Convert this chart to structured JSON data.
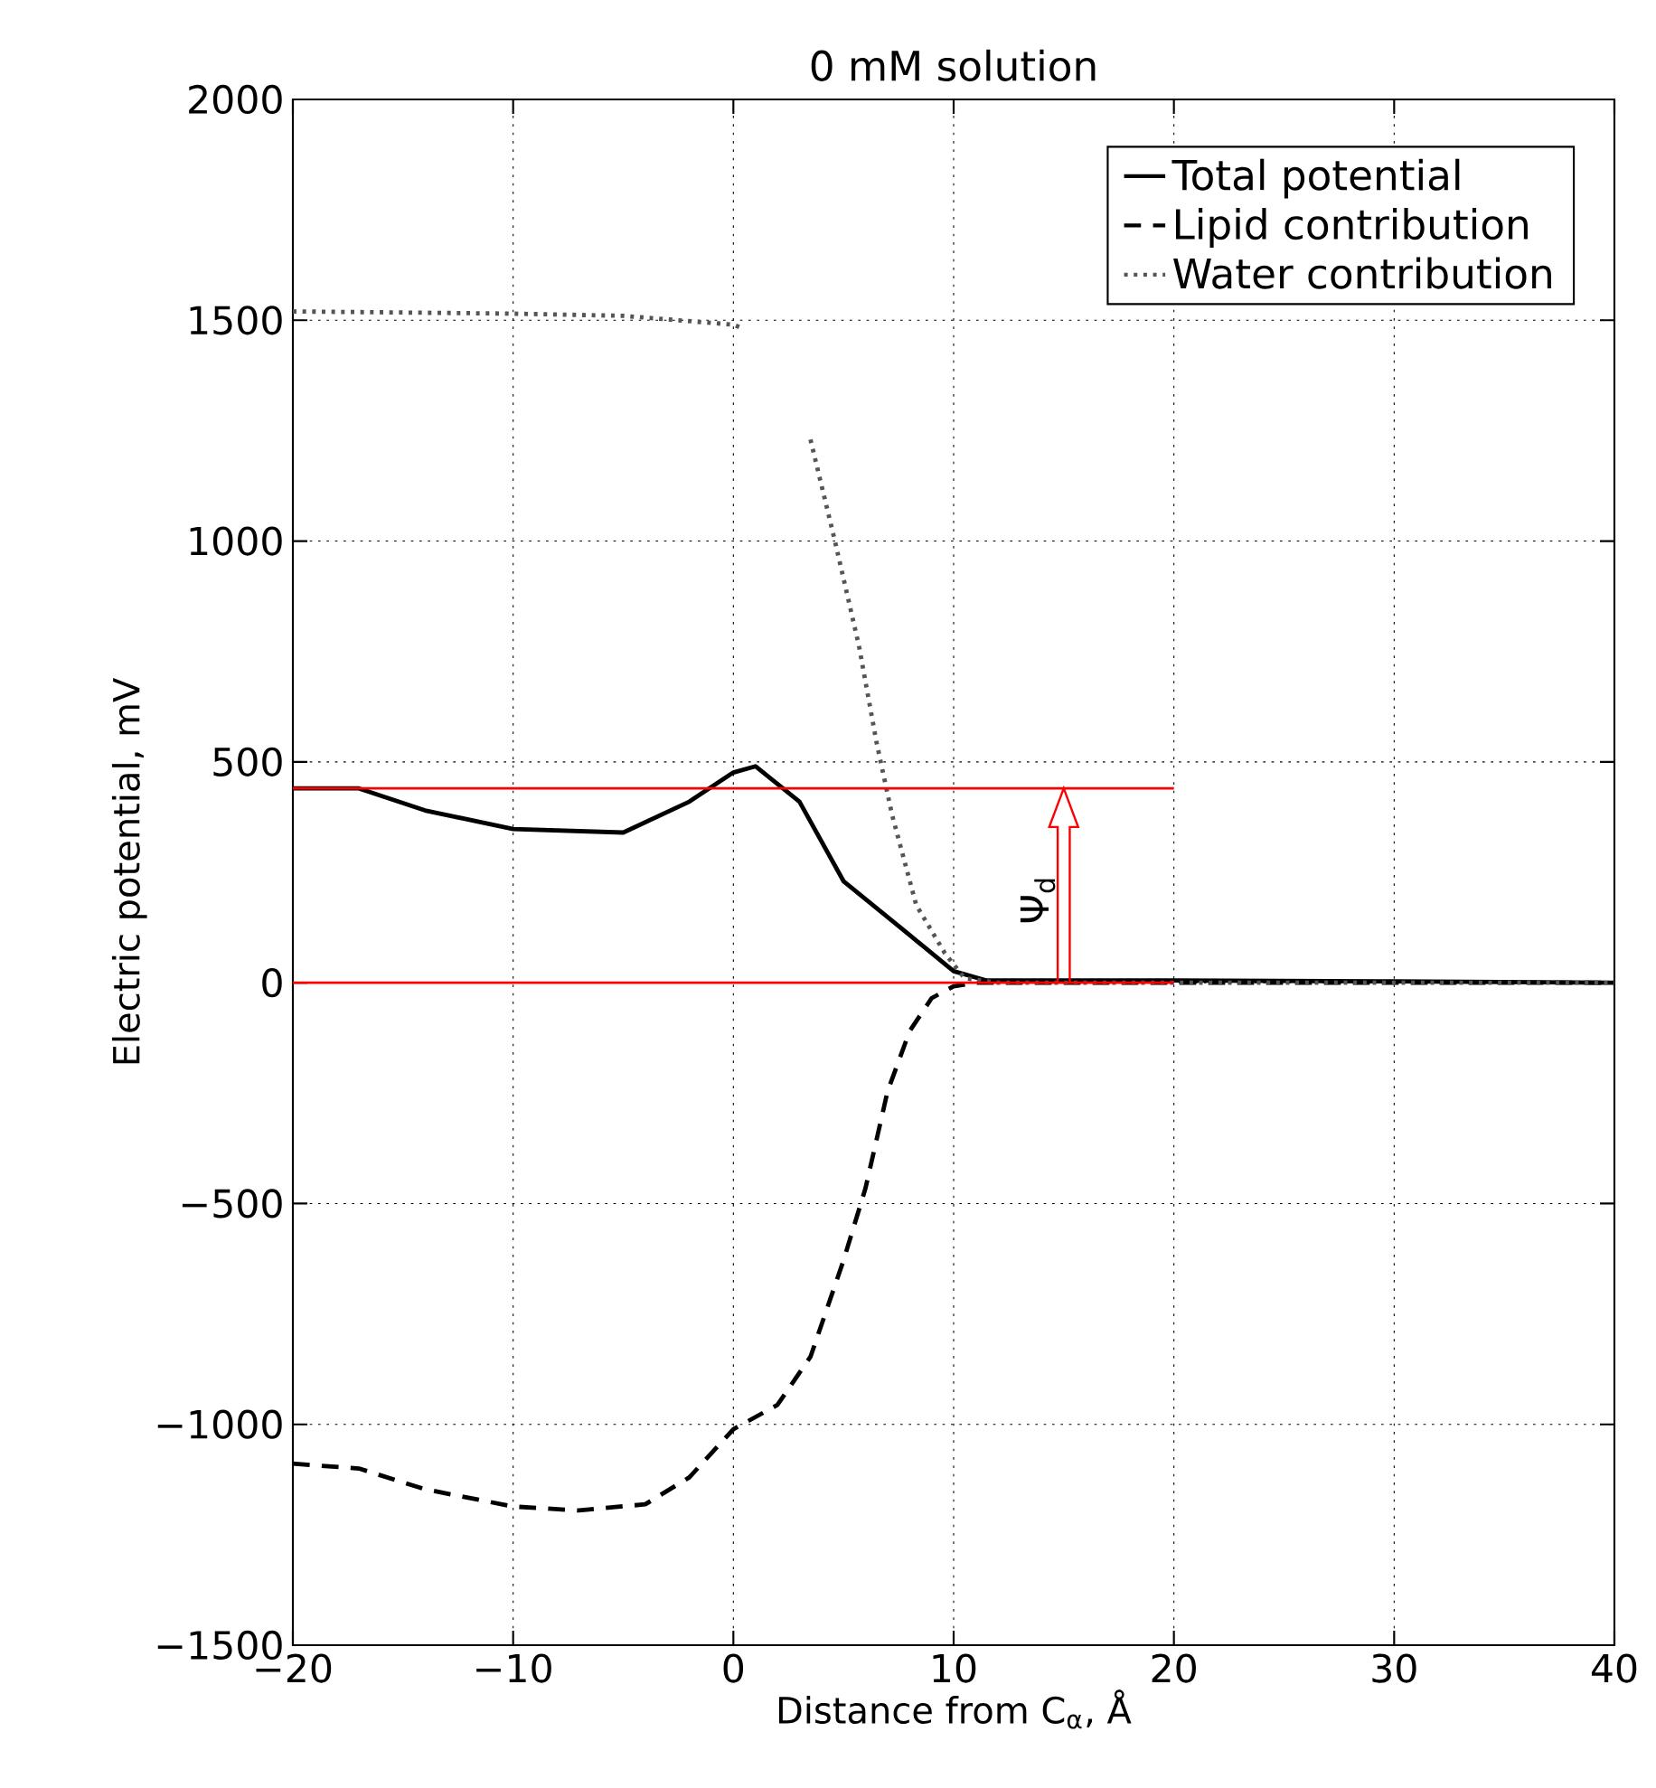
{
  "chart_data": {
    "type": "line",
    "title": "0 mM solution",
    "xlabel": "Distance from C$_{α}$, Å",
    "ylabel": "Electric potential, mV",
    "xlim": [
      -20,
      40
    ],
    "ylim": [
      -1500,
      2000
    ],
    "xticks": [
      {
        "value": -20,
        "label": "−20"
      },
      {
        "value": -10,
        "label": "−10"
      },
      0,
      10,
      20,
      30,
      40
    ],
    "yticks": [
      {
        "value": -1500,
        "label": "−1500"
      },
      {
        "value": -1000,
        "label": "−1000"
      },
      {
        "value": -500,
        "label": "−500"
      },
      0,
      500,
      1000,
      1500,
      2000
    ],
    "grid": true,
    "legend": "top right",
    "annotations": [
      "Ψ$_{d}$"
    ],
    "series": [
      {
        "name": "Total potential",
        "color": "#000000",
        "line_style": "solid",
        "x": [
          -20,
          -17,
          -14,
          -10,
          -5,
          -2,
          0,
          1,
          3,
          5,
          8,
          10,
          11.5,
          20,
          30,
          40
        ],
        "values": [
          440,
          440,
          390,
          348,
          340,
          410,
          476,
          490,
          410,
          230,
          108,
          26,
          5,
          5,
          3,
          0
        ]
      },
      {
        "name": "Lipid contribution",
        "color": "#000000",
        "line_style": "dashed",
        "x": [
          -20,
          -17,
          -14,
          -10,
          -7,
          -4,
          -2,
          0,
          2,
          3.5,
          5,
          6,
          7,
          8,
          9,
          10,
          11,
          20,
          30,
          40
        ],
        "values": [
          -1089,
          -1100,
          -1147,
          -1186,
          -1195,
          -1181,
          -1120,
          -1011,
          -956,
          -847,
          -629,
          -465,
          -246,
          -110,
          -35,
          -8,
          0,
          0,
          0,
          0
        ]
      },
      {
        "name": "Water contribution",
        "color": "#555555",
        "line_style": "dotted",
        "x": [
          -20,
          -10,
          -5,
          0,
          0.5,
          2,
          3.5,
          4.6,
          5.7,
          6.5,
          7.2,
          8.3,
          9.6,
          10.5,
          12,
          20,
          30,
          40
        ],
        "values": [
          1520,
          1515,
          1510,
          1490,
          1480,
          null,
          1230,
          1002,
          763,
          544,
          381,
          176,
          67,
          10,
          0,
          0,
          0,
          0
        ]
      },
      {
        "color": "#ff0000",
        "line_style": "solid",
        "x": [
          -20,
          20
        ],
        "values": [
          440,
          440
        ]
      },
      {
        "color": "#ff0000",
        "line_style": "solid",
        "x": [
          -20,
          20
        ],
        "values": [
          0,
          0
        ]
      }
    ]
  }
}
